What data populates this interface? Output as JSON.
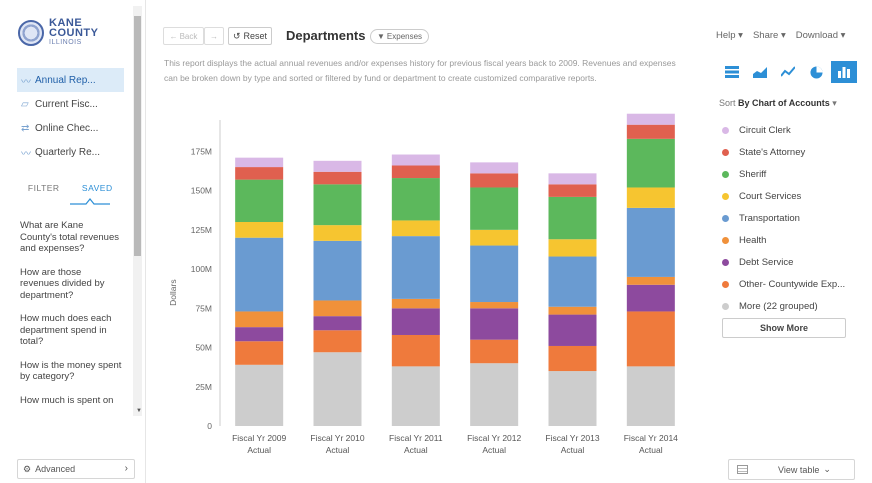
{
  "logo": {
    "line1": "KANE",
    "line2": "COUNTY",
    "line3": "ILLINOIS"
  },
  "nav": [
    {
      "label": "Annual Rep...",
      "icon": "line-chart-icon",
      "active": true
    },
    {
      "label": "Current Fisc...",
      "icon": "area-chart-icon",
      "active": false
    },
    {
      "label": "Online Chec...",
      "icon": "transfer-icon",
      "active": false
    },
    {
      "label": "Quarterly Re...",
      "icon": "line-chart-icon",
      "active": false
    }
  ],
  "tabs": {
    "filter": "FILTER",
    "saved": "SAVED"
  },
  "questions": [
    "What are Kane County's total revenues and expenses?",
    "How are those revenues divided by department?",
    "How much does each department spend in total?",
    "How is the money spent by category?",
    "How much is spent on"
  ],
  "advanced_label": "Advanced",
  "toolbar": {
    "back": "Back",
    "reset": "Reset"
  },
  "page_title": "Departments",
  "badge": "Expenses",
  "description": "This report displays the actual annual revenues and/or expenses history for previous fiscal years back to 2009. Revenues and expenses can be broken down by type and sorted or filtered by fund or department to create customized comparative reports.",
  "top_links": {
    "help": "Help",
    "share": "Share",
    "download": "Download"
  },
  "sort": {
    "prefix": "Sort",
    "value": "By Chart of Accounts"
  },
  "show_more": "Show More",
  "view_table": "View table",
  "colors": {
    "accent": "#2d8fd6",
    "circuit_clerk": "#d9b8e6",
    "states_attorney": "#e0604f",
    "sheriff": "#5cb85c",
    "court_services": "#f6c530",
    "transportation": "#6a9bd1",
    "health": "#f0913a",
    "debt_service": "#8d4a9e",
    "other_countywide": "#ef7a3c",
    "more": "#cdcdcd"
  },
  "chart_data": {
    "type": "bar",
    "stacked": true,
    "categories": [
      [
        "Fiscal Yr 2009",
        "Actual"
      ],
      [
        "Fiscal Yr 2010",
        "Actual"
      ],
      [
        "Fiscal Yr 2011",
        "Actual"
      ],
      [
        "Fiscal Yr 2012",
        "Actual"
      ],
      [
        "Fiscal Yr 2013",
        "Actual"
      ],
      [
        "Fiscal Yr 2014",
        "Actual"
      ]
    ],
    "ylabel": "Dollars",
    "ylim": [
      0,
      195
    ],
    "yticks": [
      0,
      25,
      50,
      75,
      100,
      125,
      150,
      175
    ],
    "ytick_labels": [
      "0",
      "25M",
      "50M",
      "75M",
      "100M",
      "125M",
      "150M",
      "175M"
    ],
    "grid": false,
    "legend_position": "right",
    "series": [
      {
        "name": "More (22 grouped)",
        "color": "#cdcdcd",
        "values": [
          39,
          47,
          38,
          40,
          35,
          38
        ]
      },
      {
        "name": "Other- Countywide Exp...",
        "color": "#ef7a3c",
        "values": [
          15,
          14,
          20,
          15,
          16,
          35
        ]
      },
      {
        "name": "Debt Service",
        "color": "#8d4a9e",
        "values": [
          9,
          9,
          17,
          20,
          20,
          17
        ]
      },
      {
        "name": "Health",
        "color": "#f0913a",
        "values": [
          10,
          10,
          6,
          4,
          5,
          5
        ]
      },
      {
        "name": "Transportation",
        "color": "#6a9bd1",
        "values": [
          47,
          38,
          40,
          36,
          32,
          44
        ]
      },
      {
        "name": "Court Services",
        "color": "#f6c530",
        "values": [
          10,
          10,
          10,
          10,
          11,
          13
        ]
      },
      {
        "name": "Sheriff",
        "color": "#5cb85c",
        "values": [
          27,
          26,
          27,
          27,
          27,
          31
        ]
      },
      {
        "name": "State's Attorney",
        "color": "#e0604f",
        "values": [
          8,
          8,
          8,
          9,
          8,
          9
        ]
      },
      {
        "name": "Circuit Clerk",
        "color": "#d9b8e6",
        "values": [
          6,
          7,
          7,
          7,
          7,
          7
        ]
      }
    ],
    "legend_order": [
      "Circuit Clerk",
      "State's Attorney",
      "Sheriff",
      "Court Services",
      "Transportation",
      "Health",
      "Debt Service",
      "Other- Countywide Exp...",
      "More (22 grouped)"
    ]
  }
}
